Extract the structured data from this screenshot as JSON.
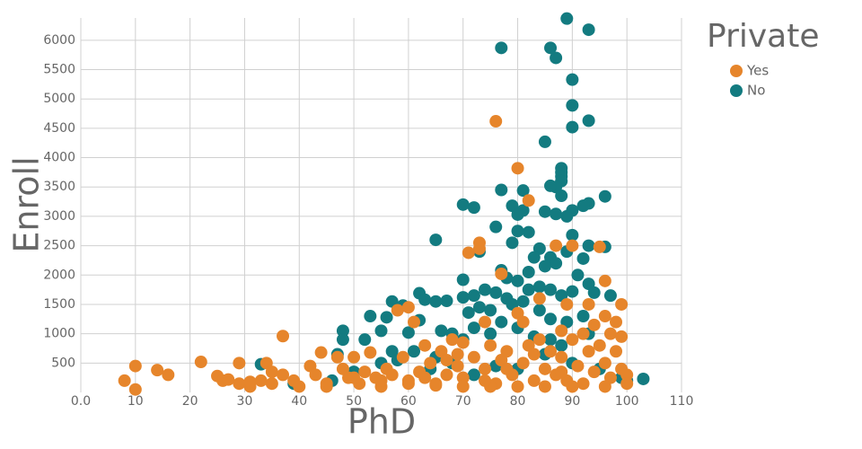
{
  "chart_data": {
    "type": "scatter",
    "x_label": "PhD",
    "y_label": "Enroll",
    "legend_title": "Private",
    "legend": "right",
    "grid": true,
    "xlim": [
      0,
      110
    ],
    "ylim": [
      0,
      6380
    ],
    "xticks": [
      {
        "value": 0,
        "label": "0.0"
      },
      10,
      20,
      30,
      40,
      50,
      60,
      70,
      80,
      90,
      100,
      110
    ],
    "yticks": [
      500,
      1000,
      1500,
      2000,
      2500,
      3000,
      3500,
      4000,
      4500,
      5000,
      5500,
      6000
    ],
    "series": [
      {
        "name": "Yes",
        "color": "#e6852b",
        "x": [
          8,
          10,
          10,
          14,
          16,
          22,
          25,
          26,
          29,
          29,
          31,
          33,
          34,
          35,
          37,
          37,
          39,
          40,
          42,
          43,
          44,
          45,
          47,
          48,
          49,
          50,
          51,
          52,
          53,
          54,
          55,
          56,
          57,
          58,
          59,
          60,
          60,
          61,
          62,
          63,
          64,
          65,
          66,
          67,
          68,
          69,
          70,
          70,
          71,
          72,
          73,
          73,
          74,
          74,
          75,
          76,
          76,
          77,
          77,
          78,
          79,
          80,
          80,
          81,
          81,
          82,
          82,
          83,
          84,
          84,
          85,
          86,
          87,
          87,
          88,
          88,
          89,
          89,
          90,
          90,
          91,
          92,
          92,
          93,
          93,
          94,
          94,
          95,
          95,
          96,
          96,
          96,
          97,
          97,
          98,
          98,
          99,
          99,
          99,
          100,
          100,
          96,
          90,
          85,
          80,
          75,
          70,
          65,
          60,
          55,
          50,
          45,
          35,
          31,
          27,
          88,
          83,
          78,
          74,
          67,
          63,
          69
        ],
        "values": [
          200,
          450,
          50,
          380,
          300,
          520,
          280,
          200,
          500,
          150,
          100,
          200,
          500,
          350,
          960,
          300,
          200,
          100,
          450,
          300,
          680,
          150,
          600,
          400,
          250,
          600,
          150,
          350,
          680,
          250,
          100,
          400,
          300,
          1400,
          600,
          200,
          1450,
          1200,
          350,
          800,
          500,
          150,
          700,
          300,
          900,
          450,
          250,
          850,
          2380,
          600,
          2450,
          2550,
          1200,
          400,
          800,
          4620,
          150,
          550,
          2020,
          700,
          300,
          3820,
          1350,
          1200,
          500,
          3270,
          800,
          200,
          1600,
          900,
          400,
          700,
          2500,
          300,
          1050,
          600,
          1500,
          200,
          2500,
          900,
          450,
          1000,
          150,
          1500,
          700,
          1150,
          350,
          2480,
          800,
          1900,
          1300,
          500,
          1000,
          250,
          1200,
          700,
          1500,
          950,
          400,
          300,
          150,
          100,
          100,
          100,
          100,
          100,
          100,
          120,
          150,
          200,
          250,
          100,
          150,
          180,
          220,
          350,
          650,
          400,
          200,
          550,
          250,
          650
        ]
      },
      {
        "name": "No",
        "color": "#137b80",
        "x": [
          89,
          93,
          77,
          86,
          87,
          90,
          90,
          93,
          90,
          85,
          88,
          88,
          88,
          88,
          87,
          86,
          77,
          81,
          88,
          96,
          93,
          92,
          70,
          72,
          79,
          81,
          80,
          85,
          87,
          90,
          89,
          76,
          80,
          82,
          90,
          65,
          79,
          84,
          93,
          96,
          89,
          73,
          77,
          83,
          86,
          87,
          92,
          82,
          85,
          91,
          70,
          78,
          80,
          82,
          84,
          86,
          88,
          90,
          93,
          94,
          97,
          62,
          63,
          67,
          65,
          57,
          59,
          70,
          72,
          74,
          76,
          78,
          73,
          75,
          71,
          79,
          81,
          84,
          86,
          89,
          92,
          53,
          56,
          60,
          62,
          66,
          68,
          70,
          72,
          75,
          77,
          80,
          83,
          86,
          88,
          93,
          48,
          48,
          52,
          55,
          47,
          57,
          61,
          65,
          33,
          39,
          46,
          50,
          55,
          58,
          64,
          68,
          72,
          76,
          80,
          85,
          90,
          95,
          99,
          103,
          100
        ],
        "values": [
          6370,
          6180,
          5870,
          5870,
          5700,
          5330,
          4890,
          4630,
          4520,
          4270,
          3820,
          3750,
          3680,
          3600,
          3500,
          3520,
          3450,
          3440,
          3350,
          3340,
          3220,
          3180,
          3200,
          3150,
          3180,
          3100,
          3030,
          3080,
          3040,
          3100,
          3000,
          2820,
          2750,
          2730,
          2680,
          2600,
          2550,
          2450,
          2500,
          2480,
          2400,
          2400,
          2080,
          2300,
          2300,
          2200,
          2280,
          2050,
          2150,
          2000,
          1920,
          1950,
          1900,
          1750,
          1800,
          1750,
          1650,
          1720,
          1850,
          1700,
          1650,
          1690,
          1580,
          1560,
          1550,
          1550,
          1480,
          1620,
          1650,
          1750,
          1700,
          1600,
          1450,
          1400,
          1360,
          1500,
          1550,
          1400,
          1250,
          1200,
          1300,
          1300,
          1280,
          1020,
          1230,
          1050,
          1000,
          900,
          1100,
          1000,
          1200,
          1100,
          950,
          900,
          800,
          1000,
          1050,
          900,
          900,
          1050,
          650,
          700,
          700,
          600,
          480,
          150,
          200,
          350,
          500,
          550,
          400,
          500,
          300,
          450,
          400,
          650,
          500,
          400,
          250,
          230,
          200
        ]
      }
    ]
  }
}
